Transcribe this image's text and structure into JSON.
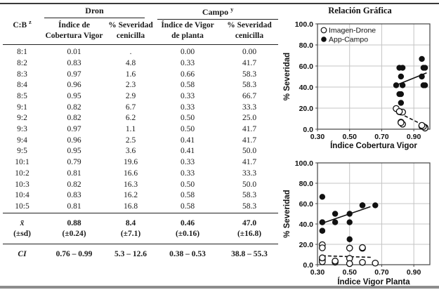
{
  "table": {
    "corner": {
      "label": "C:B",
      "sup": "z"
    },
    "groups": [
      {
        "label": "Dron",
        "sup": ""
      },
      {
        "label": "Campo",
        "sup": "y"
      }
    ],
    "col_headers": [
      "Índice de\nCobertura Vigor",
      "% Severidad\ncenicilla",
      "Índice de Vigor\nde planta",
      "% Severidad\ncenicilla"
    ],
    "rows": [
      [
        "8:1",
        "0.01",
        ".",
        "0.00",
        "0.00"
      ],
      [
        "8:2",
        "0.83",
        "4.8",
        "0.33",
        "41.7"
      ],
      [
        "8:3",
        "0.97",
        "1.6",
        "0.66",
        "58.3"
      ],
      [
        "8:4",
        "0.96",
        "2.3",
        "0.58",
        "58.3"
      ],
      [
        "8:5",
        "0.95",
        "2.9",
        "0.33",
        "66.7"
      ],
      [
        "9:1",
        "0.82",
        "6.7",
        "0.33",
        "33.3"
      ],
      [
        "9:2",
        "0.82",
        "6.2",
        "0.50",
        "25.0"
      ],
      [
        "9:3",
        "0.97",
        "1.1",
        "0.50",
        "41.7"
      ],
      [
        "9:4",
        "0.96",
        "2.5",
        "0.41",
        "41.7"
      ],
      [
        "9:5",
        "0.95",
        "3.6",
        "0.41",
        "50.0"
      ],
      [
        "10:1",
        "0.79",
        "19.6",
        "0.33",
        "41.7"
      ],
      [
        "10:2",
        "0.81",
        "16.6",
        "0.33",
        "33.3"
      ],
      [
        "10:3",
        "0.82",
        "16.3",
        "0.50",
        "50.0"
      ],
      [
        "10:4",
        "0.83",
        "16.2",
        "0.58",
        "58.3"
      ],
      [
        "10:5",
        "0.81",
        "16.8",
        "0.58",
        "58.3"
      ]
    ],
    "mean": {
      "label": "x̄",
      "sd_label": "(±sd)",
      "values": [
        "0.88",
        "8.4",
        "0.46",
        "47.0"
      ],
      "sds": [
        "(±0.24)",
        "(±7.1)",
        "(±0.16)",
        "(±16.8)"
      ]
    },
    "ci": {
      "label": "CI",
      "values": [
        "0.76 – 0.99",
        "5.3 – 12.6",
        "0.38 – 0.53",
        "38.8 – 55.3"
      ]
    }
  },
  "charts_title": "Relación Gráfica",
  "chart_data": [
    {
      "type": "scatter",
      "title": "Relación Gráfica",
      "xlabel": "Índice Cobertura Vigor",
      "ylabel": "% Severidad",
      "xlim": [
        0.3,
        1.0
      ],
      "ylim": [
        0,
        100
      ],
      "xticks": [
        0.3,
        0.5,
        0.7,
        0.9
      ],
      "yticks": [
        0,
        20,
        40,
        60,
        80,
        100
      ],
      "grid": true,
      "legend_position": "top-left-inside",
      "show_legend": true,
      "series": [
        {
          "name": "Imagen-Drone",
          "marker": "open",
          "points": [
            [
              0.83,
              4.8
            ],
            [
              0.97,
              1.6
            ],
            [
              0.96,
              2.3
            ],
            [
              0.95,
              2.9
            ],
            [
              0.82,
              6.7
            ],
            [
              0.82,
              6.2
            ],
            [
              0.97,
              1.1
            ],
            [
              0.96,
              2.5
            ],
            [
              0.95,
              3.6
            ],
            [
              0.79,
              19.6
            ],
            [
              0.81,
              16.6
            ],
            [
              0.82,
              16.3
            ],
            [
              0.83,
              16.2
            ],
            [
              0.81,
              16.8
            ]
          ],
          "trend": {
            "style": "dashed",
            "from": [
              0.78,
              17.5
            ],
            "to": [
              0.99,
              1.5
            ]
          }
        },
        {
          "name": "App-Campo",
          "marker": "filled",
          "points": [
            [
              0.83,
              41.7
            ],
            [
              0.97,
              58.3
            ],
            [
              0.96,
              58.3
            ],
            [
              0.95,
              66.7
            ],
            [
              0.82,
              33.3
            ],
            [
              0.82,
              25.0
            ],
            [
              0.97,
              41.7
            ],
            [
              0.96,
              41.7
            ],
            [
              0.95,
              50.0
            ],
            [
              0.79,
              41.7
            ],
            [
              0.81,
              33.3
            ],
            [
              0.82,
              50.0
            ],
            [
              0.83,
              58.3
            ],
            [
              0.81,
              58.3
            ]
          ],
          "trend": {
            "style": "solid",
            "from": [
              0.785,
              41.5
            ],
            "to": [
              0.98,
              53.5
            ]
          }
        }
      ]
    },
    {
      "type": "scatter",
      "title": "",
      "xlabel": "Índice Vigor Planta",
      "ylabel": "% Severidad",
      "xlim": [
        0.3,
        1.0
      ],
      "ylim": [
        0,
        100
      ],
      "xticks": [
        0.3,
        0.5,
        0.7,
        0.9
      ],
      "yticks": [
        0,
        20,
        40,
        60,
        80,
        100
      ],
      "grid": true,
      "show_legend": false,
      "series": [
        {
          "name": "Imagen-Drone",
          "marker": "open",
          "points": [
            [
              0.33,
              4.8
            ],
            [
              0.66,
              1.6
            ],
            [
              0.58,
              2.3
            ],
            [
              0.33,
              2.9
            ],
            [
              0.33,
              6.7
            ],
            [
              0.5,
              6.2
            ],
            [
              0.5,
              1.1
            ],
            [
              0.41,
              2.5
            ],
            [
              0.41,
              3.6
            ],
            [
              0.33,
              19.6
            ],
            [
              0.33,
              16.6
            ],
            [
              0.5,
              16.3
            ],
            [
              0.58,
              16.2
            ],
            [
              0.58,
              16.8
            ]
          ],
          "trend": {
            "style": "dashed",
            "from": [
              0.33,
              8.8
            ],
            "to": [
              0.64,
              7.2
            ]
          }
        },
        {
          "name": "App-Campo",
          "marker": "filled",
          "points": [
            [
              0.33,
              41.7
            ],
            [
              0.66,
              58.3
            ],
            [
              0.58,
              58.3
            ],
            [
              0.33,
              66.7
            ],
            [
              0.33,
              33.3
            ],
            [
              0.5,
              25.0
            ],
            [
              0.5,
              41.7
            ],
            [
              0.41,
              41.7
            ],
            [
              0.41,
              50.0
            ],
            [
              0.33,
              41.7
            ],
            [
              0.33,
              33.3
            ],
            [
              0.5,
              50.0
            ],
            [
              0.58,
              58.3
            ],
            [
              0.58,
              58.3
            ]
          ],
          "trend": {
            "style": "solid",
            "from": [
              0.335,
              41.0
            ],
            "to": [
              0.63,
              57.0
            ]
          }
        }
      ]
    }
  ]
}
